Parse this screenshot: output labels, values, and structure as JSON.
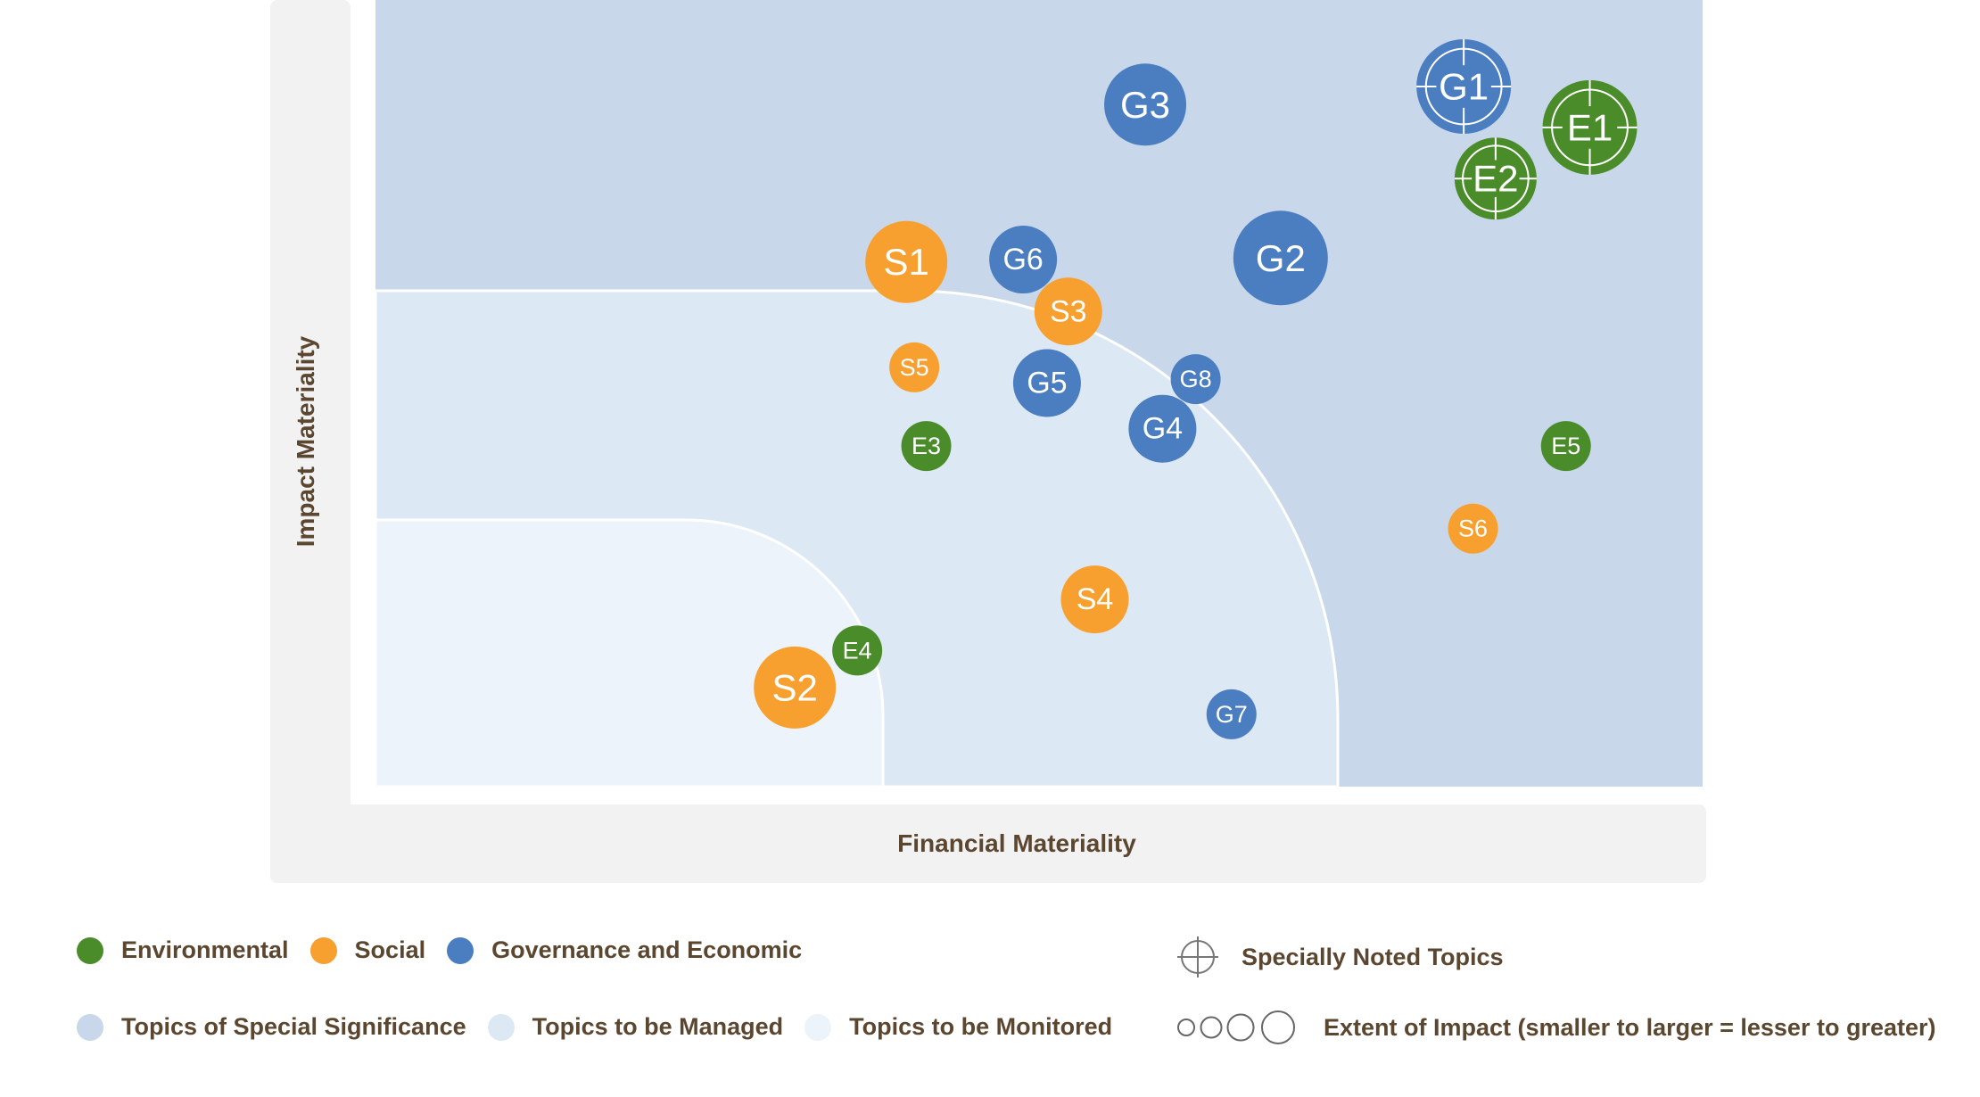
{
  "chart_data": {
    "type": "scatter",
    "xlabel": "Financial Materiality",
    "ylabel": "Impact Materiality",
    "xlim": [
      0,
      100
    ],
    "ylim": [
      0,
      100
    ],
    "grid": false,
    "legend_position": "bottom",
    "zones": [
      {
        "name": "Topics of Special Significance",
        "color": "#c8d7e9"
      },
      {
        "name": "Topics to be Managed",
        "color": "#dde8f5"
      },
      {
        "name": "Topics to be Monitored",
        "color": "#edf3fb"
      }
    ],
    "categories": [
      {
        "key": "E",
        "name": "Environmental",
        "color": "#4a8c2a"
      },
      {
        "key": "S",
        "name": "Social",
        "color": "#f7a02f"
      },
      {
        "key": "G",
        "name": "Governance and Economic",
        "color": "#4b7dc1"
      }
    ],
    "points": [
      {
        "label": "G1",
        "category": "G",
        "x": 82.0,
        "y": 89.0,
        "impact": 4,
        "noted": true
      },
      {
        "label": "E1",
        "category": "E",
        "x": 91.5,
        "y": 83.8,
        "impact": 4,
        "noted": true
      },
      {
        "label": "E2",
        "category": "E",
        "x": 84.4,
        "y": 77.3,
        "impact": 3,
        "noted": true
      },
      {
        "label": "G3",
        "category": "G",
        "x": 58.0,
        "y": 86.7,
        "impact": 3,
        "noted": false
      },
      {
        "label": "G2",
        "category": "G",
        "x": 68.2,
        "y": 67.2,
        "impact": 4,
        "noted": false
      },
      {
        "label": "S1",
        "category": "S",
        "x": 40.0,
        "y": 66.7,
        "impact": 3,
        "noted": false
      },
      {
        "label": "G6",
        "category": "G",
        "x": 48.8,
        "y": 67.0,
        "impact": 2,
        "noted": false
      },
      {
        "label": "S3",
        "category": "S",
        "x": 52.2,
        "y": 60.4,
        "impact": 2,
        "noted": false
      },
      {
        "label": "S5",
        "category": "S",
        "x": 40.6,
        "y": 53.3,
        "impact": 1,
        "noted": false
      },
      {
        "label": "G5",
        "category": "G",
        "x": 50.6,
        "y": 51.3,
        "impact": 2,
        "noted": false
      },
      {
        "label": "G8",
        "category": "G",
        "x": 61.8,
        "y": 51.8,
        "impact": 1,
        "noted": false
      },
      {
        "label": "G4",
        "category": "G",
        "x": 59.3,
        "y": 45.5,
        "impact": 2,
        "noted": false
      },
      {
        "label": "E3",
        "category": "E",
        "x": 41.5,
        "y": 43.3,
        "impact": 1,
        "noted": false
      },
      {
        "label": "E5",
        "category": "E",
        "x": 89.7,
        "y": 43.3,
        "impact": 1,
        "noted": false
      },
      {
        "label": "S6",
        "category": "S",
        "x": 82.7,
        "y": 32.8,
        "impact": 1,
        "noted": false
      },
      {
        "label": "S4",
        "category": "S",
        "x": 54.2,
        "y": 23.8,
        "impact": 2,
        "noted": false
      },
      {
        "label": "E4",
        "category": "E",
        "x": 36.3,
        "y": 17.3,
        "impact": 1,
        "noted": false
      },
      {
        "label": "S2",
        "category": "S",
        "x": 31.6,
        "y": 12.6,
        "impact": 3,
        "noted": false
      },
      {
        "label": "G7",
        "category": "G",
        "x": 64.5,
        "y": 9.2,
        "impact": 1,
        "noted": false
      }
    ]
  },
  "legend": {
    "categories": [
      {
        "label": "Environmental",
        "color": "#4a8c2a"
      },
      {
        "label": "Social",
        "color": "#f7a02f"
      },
      {
        "label": "Governance and Economic",
        "color": "#4b7dc1"
      }
    ],
    "zones": [
      {
        "label": "Topics of Special Significance",
        "color": "#c8d7e9"
      },
      {
        "label": "Topics to be Managed",
        "color": "#dde8f5"
      },
      {
        "label": "Topics to be Monitored",
        "color": "#edf3fb"
      }
    ],
    "special_noted_label": "Specially Noted Topics",
    "extent_label": "Extent of Impact (smaller to larger = lesser to greater)"
  }
}
